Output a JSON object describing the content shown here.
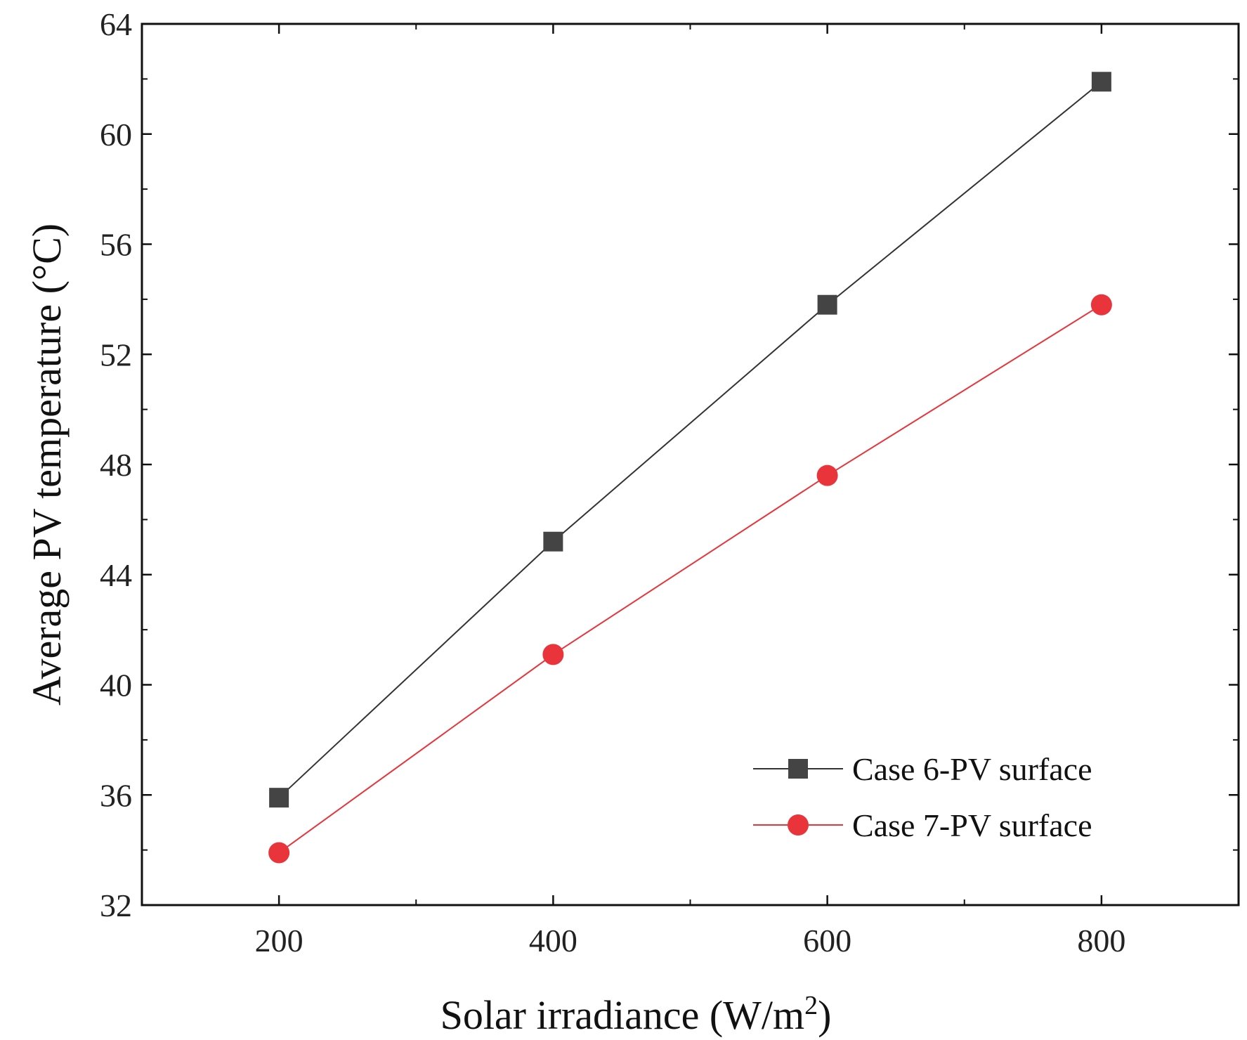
{
  "chart_data": {
    "type": "line",
    "x": [
      200,
      400,
      600,
      800
    ],
    "xlim": [
      100,
      900
    ],
    "ylim": [
      32,
      64
    ],
    "xticks": [
      200,
      400,
      600,
      800
    ],
    "yticks": [
      32,
      36,
      40,
      44,
      48,
      52,
      56,
      60,
      64
    ],
    "xlabel": "Solar irradiance (W/m",
    "xlabel_superscript": "2",
    "xlabel_suffix": ")",
    "ylabel": "Average PV temperature (°C)",
    "grid": false,
    "legend_position": "bottom-right",
    "series": [
      {
        "name": "Case 6-PV surface",
        "values": [
          35.9,
          45.2,
          53.8,
          61.9
        ],
        "color": "#333333",
        "marker": "square"
      },
      {
        "name": "Case 7-PV surface",
        "values": [
          33.9,
          41.1,
          47.6,
          53.8
        ],
        "color": "#e8343a",
        "marker": "circle"
      }
    ]
  }
}
